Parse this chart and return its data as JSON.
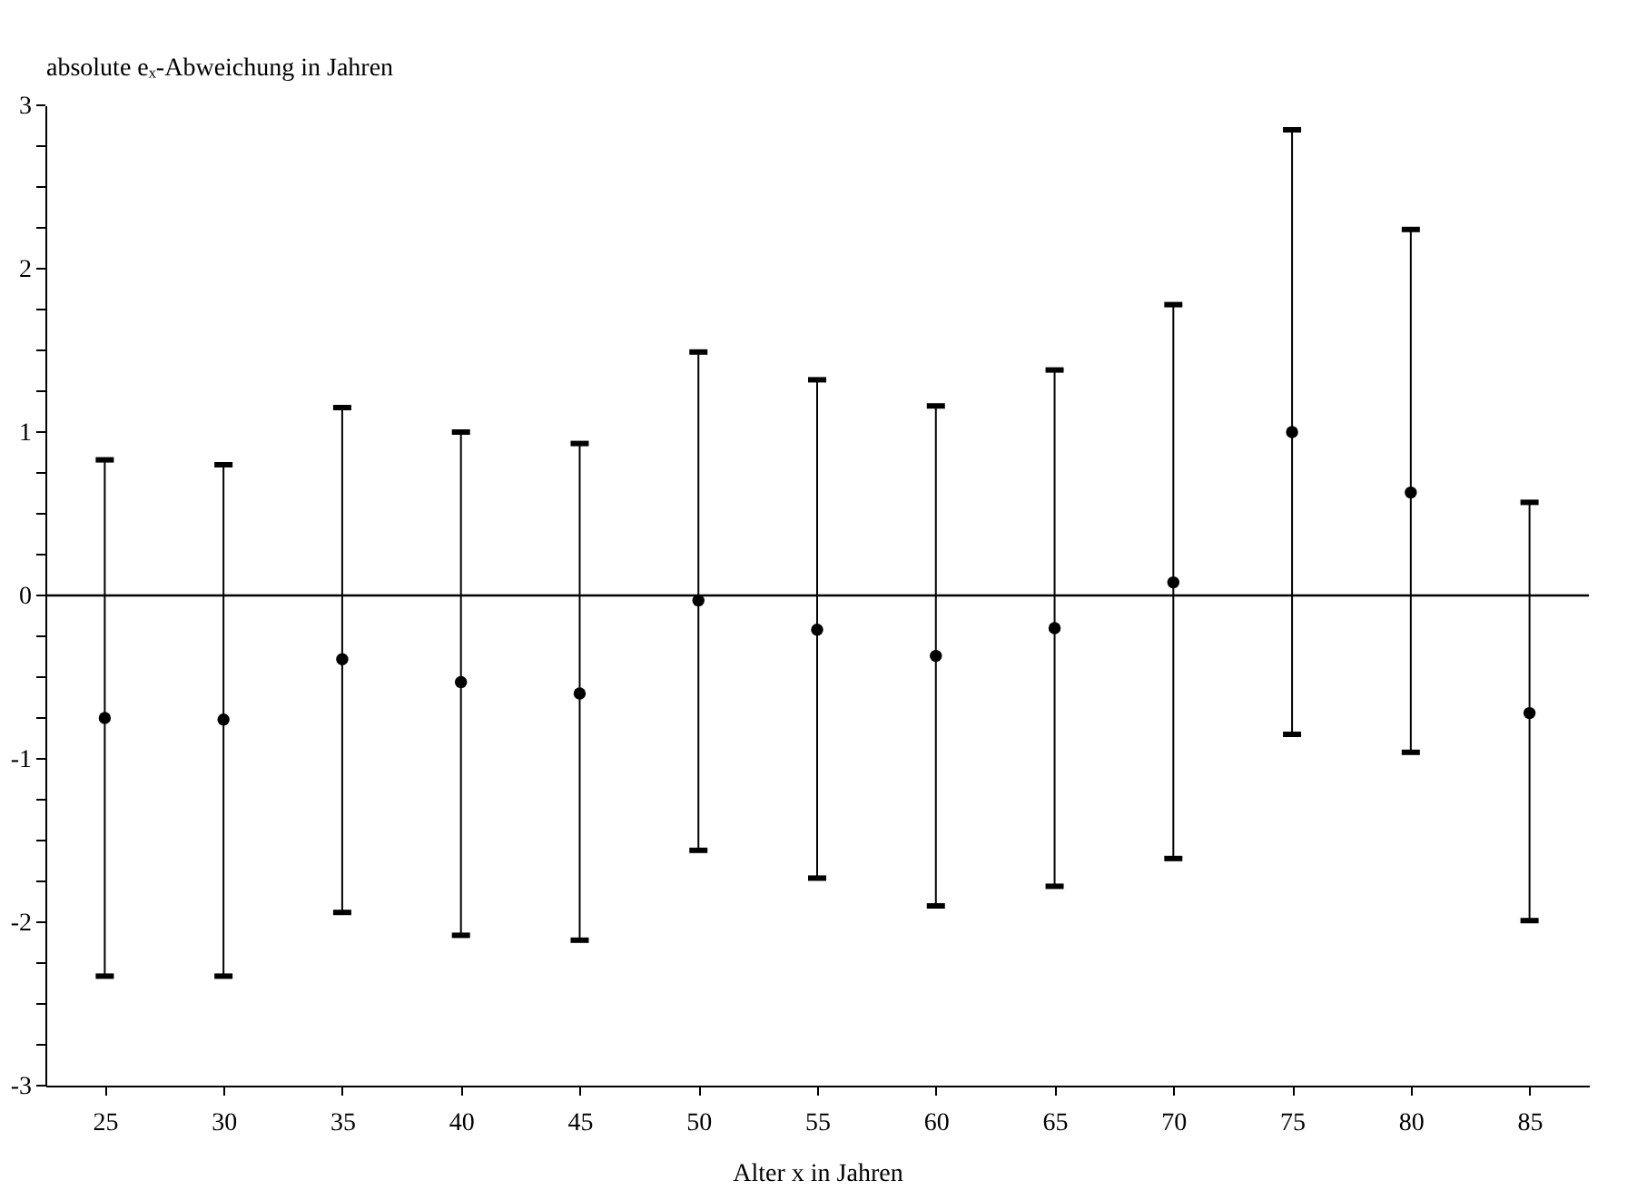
{
  "chart_data": {
    "type": "scatter",
    "ylabel": "absolute eₓ-Abweichung in Jahren",
    "xlabel": "Alter x in Jahren",
    "categories": [
      "25",
      "30",
      "35",
      "40",
      "45",
      "50",
      "55",
      "60",
      "65",
      "70",
      "75",
      "80",
      "85"
    ],
    "series": [
      {
        "color": "#000000",
        "values": [
          -0.75,
          -0.76,
          -0.39,
          -0.53,
          -0.6,
          -0.03,
          -0.21,
          -0.37,
          -0.2,
          0.08,
          1.0,
          0.63,
          -0.72
        ],
        "errors": [
          [
            -2.33,
            0.83
          ],
          [
            -2.33,
            0.8
          ],
          [
            -1.94,
            1.15
          ],
          [
            -2.08,
            1.0
          ],
          [
            -2.11,
            0.93
          ],
          [
            -1.56,
            1.49
          ],
          [
            -1.73,
            1.32
          ],
          [
            -1.9,
            1.16
          ],
          [
            -1.78,
            1.38
          ],
          [
            -1.61,
            1.78
          ],
          [
            -0.85,
            2.85
          ],
          [
            -0.96,
            2.24
          ],
          [
            -1.99,
            0.57
          ]
        ]
      }
    ],
    "ylim": [
      -3,
      3
    ],
    "yticks": [
      -3,
      {
        "value": -2.75,
        "label": null
      },
      {
        "value": -2.5,
        "label": null
      },
      {
        "value": -2.25,
        "label": null
      },
      -2,
      {
        "value": -1.75,
        "label": null
      },
      {
        "value": -1.5,
        "label": null
      },
      {
        "value": -1.25,
        "label": null
      },
      -1,
      {
        "value": -0.75,
        "label": null
      },
      {
        "value": -0.5,
        "label": null
      },
      {
        "value": -0.25,
        "label": null
      },
      0,
      {
        "value": 0.25,
        "label": null
      },
      {
        "value": 0.5,
        "label": null
      },
      {
        "value": 0.75,
        "label": null
      },
      1,
      {
        "value": 1.25,
        "label": null
      },
      {
        "value": 1.5,
        "label": null
      },
      {
        "value": 1.75,
        "label": null
      },
      2,
      {
        "value": 2.25,
        "label": null
      },
      {
        "value": 2.5,
        "label": null
      },
      {
        "value": 2.75,
        "label": null
      },
      3
    ],
    "ref_lines": [
      {
        "axis": "y",
        "value": 0,
        "color": "#000000"
      }
    ],
    "marker": "circle",
    "grid": false
  }
}
